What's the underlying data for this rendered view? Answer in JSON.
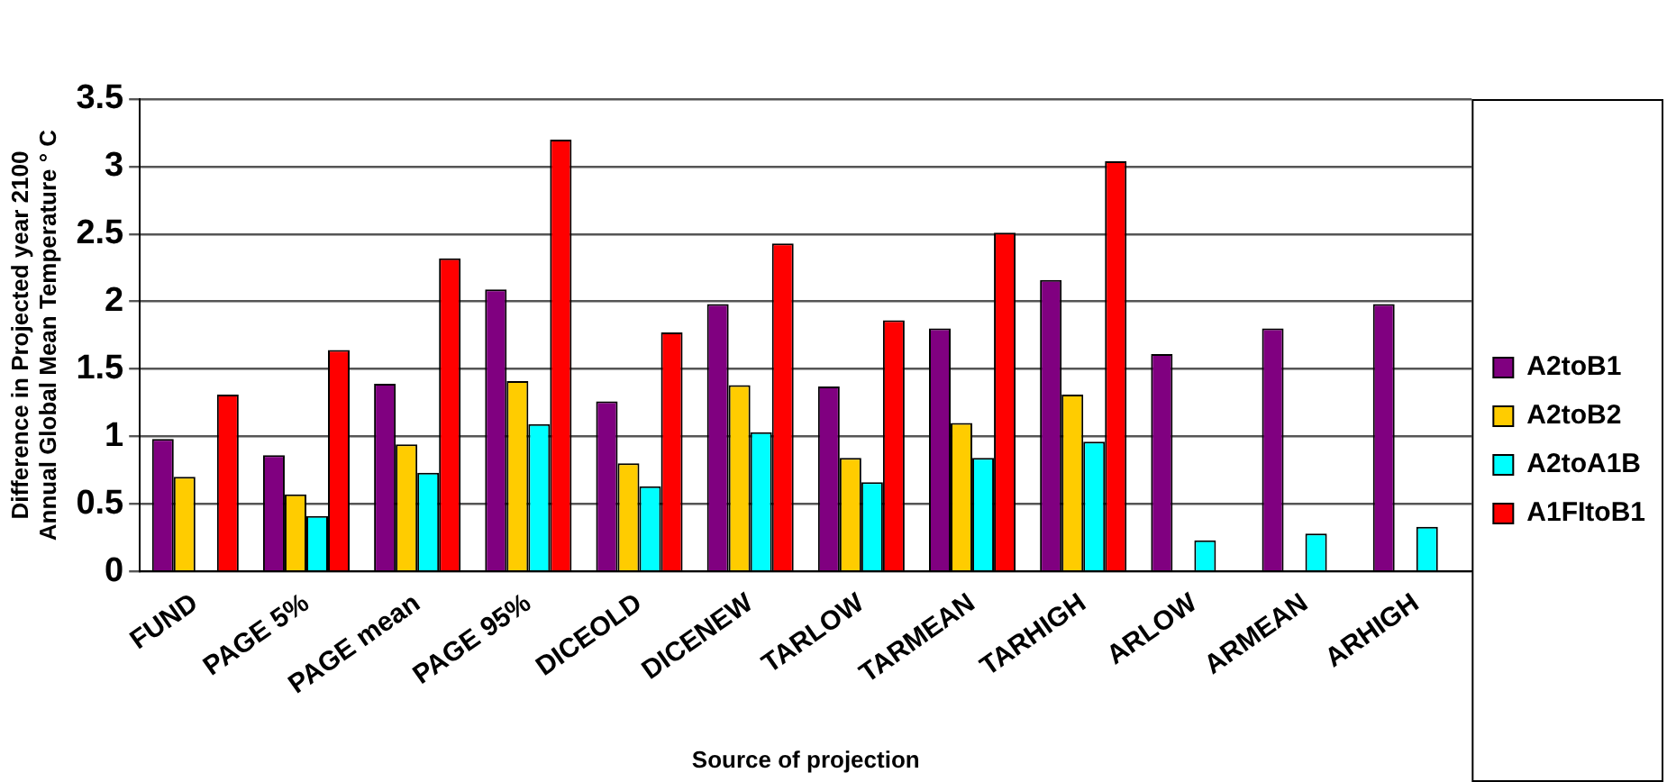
{
  "chart_data": {
    "type": "bar",
    "xlabel": "Source of projection",
    "ylabel": "Difference in Projected year 2100\nAnnual Global Mean Temperature ° C",
    "categories": [
      "FUND",
      "PAGE 5%",
      "PAGE mean",
      "PAGE 95%",
      "DICEOLD",
      "DICENEW",
      "TARLOW",
      "TARMEAN",
      "TARHIGH",
      "ARLOW",
      "ARMEAN",
      "ARHIGH"
    ],
    "series": [
      {
        "name": "A2toB1",
        "color": "#800080",
        "values": [
          0.98,
          0.86,
          1.39,
          2.09,
          1.26,
          1.98,
          1.37,
          1.8,
          2.16,
          1.61,
          1.8,
          1.98
        ]
      },
      {
        "name": "A2toB2",
        "color": "#ffcc00",
        "values": [
          0.7,
          0.57,
          0.94,
          1.41,
          0.8,
          1.38,
          0.84,
          1.1,
          1.31,
          null,
          null,
          null
        ]
      },
      {
        "name": "A2toA1B",
        "color": "#00ffff",
        "values": [
          null,
          0.41,
          0.73,
          1.09,
          0.63,
          1.03,
          0.66,
          0.84,
          0.96,
          0.23,
          0.28,
          0.33
        ]
      },
      {
        "name": "A1FItoB1",
        "color": "#ff0000",
        "values": [
          1.31,
          1.64,
          2.32,
          3.2,
          1.77,
          2.43,
          1.86,
          2.51,
          3.04,
          null,
          null,
          null
        ]
      }
    ],
    "ylim": [
      0,
      3.5
    ],
    "yticks": [
      0,
      0.5,
      1,
      1.5,
      2,
      2.5,
      3,
      3.5
    ],
    "grid": "y",
    "legend": "right"
  }
}
